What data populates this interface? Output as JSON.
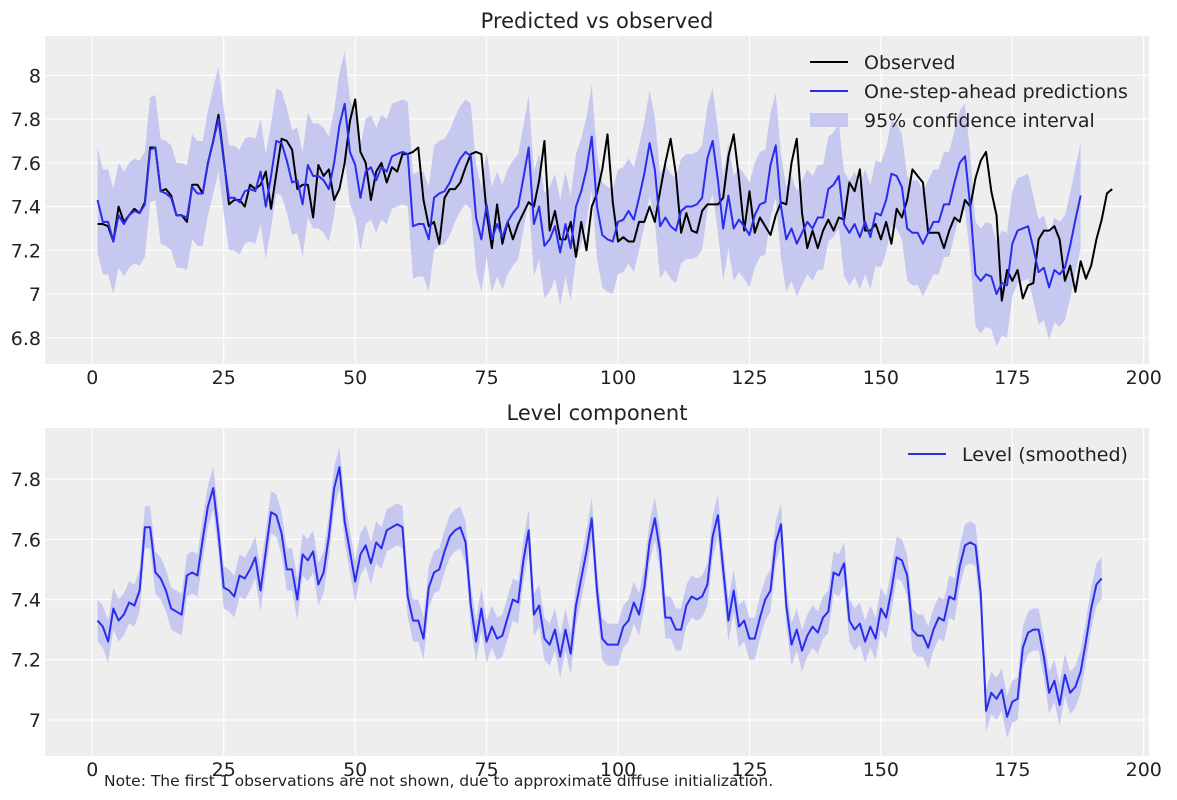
{
  "note": "Note: The first 1 observations are not shown, due to approximate diffuse initialization.",
  "colors": {
    "observed": "#000000",
    "predicted": "#2a2eec",
    "band": "#c7c8f0",
    "panel": "#eeeeee",
    "grid": "#ffffff"
  },
  "chart_data": [
    {
      "type": "line",
      "title": "Predicted vs observed",
      "xlim": [
        -9,
        201
      ],
      "ylim": [
        6.68,
        8.18
      ],
      "xticks": [
        0,
        25,
        50,
        75,
        100,
        125,
        150,
        175,
        200
      ],
      "yticks": [
        6.8,
        7.0,
        7.2,
        7.4,
        7.6,
        7.8,
        8.0
      ],
      "legend_loc": "top-right",
      "legend": [
        "Observed",
        "One-step-ahead predictions",
        "95% confidence interval"
      ],
      "x_start": 1,
      "band_halfwidth": 0.24,
      "series": [
        {
          "name": "Observed",
          "values": [
            7.32,
            7.32,
            7.31,
            7.24,
            7.4,
            7.33,
            7.36,
            7.39,
            7.37,
            7.42,
            7.67,
            7.67,
            7.47,
            7.48,
            7.45,
            7.36,
            7.36,
            7.33,
            7.5,
            7.5,
            7.46,
            7.6,
            7.7,
            7.82,
            7.62,
            7.41,
            7.43,
            7.43,
            7.4,
            7.5,
            7.48,
            7.5,
            7.56,
            7.39,
            7.55,
            7.71,
            7.7,
            7.66,
            7.48,
            7.5,
            7.5,
            7.35,
            7.59,
            7.54,
            7.57,
            7.43,
            7.48,
            7.6,
            7.79,
            7.89,
            7.65,
            7.6,
            7.43,
            7.56,
            7.6,
            7.51,
            7.58,
            7.56,
            7.64,
            7.64,
            7.65,
            7.67,
            7.43,
            7.31,
            7.33,
            7.23,
            7.44,
            7.48,
            7.48,
            7.51,
            7.58,
            7.64,
            7.65,
            7.64,
            7.37,
            7.21,
            7.41,
            7.23,
            7.33,
            7.25,
            7.32,
            7.37,
            7.42,
            7.4,
            7.52,
            7.7,
            7.29,
            7.38,
            7.25,
            7.25,
            7.33,
            7.17,
            7.33,
            7.2,
            7.4,
            7.46,
            7.57,
            7.73,
            7.42,
            7.24,
            7.26,
            7.24,
            7.24,
            7.33,
            7.33,
            7.4,
            7.33,
            7.47,
            7.6,
            7.71,
            7.55,
            7.28,
            7.37,
            7.29,
            7.28,
            7.38,
            7.41,
            7.41,
            7.41,
            7.44,
            7.63,
            7.73,
            7.53,
            7.29,
            7.47,
            7.28,
            7.35,
            7.31,
            7.27,
            7.36,
            7.42,
            7.41,
            7.6,
            7.71,
            7.37,
            7.21,
            7.29,
            7.21,
            7.29,
            7.34,
            7.29,
            7.35,
            7.34,
            7.51,
            7.47,
            7.57,
            7.29,
            7.29,
            7.32,
            7.25,
            7.33,
            7.23,
            7.39,
            7.35,
            7.43,
            7.57,
            7.54,
            7.51,
            7.28,
            7.28,
            7.28,
            7.21,
            7.29,
            7.35,
            7.33,
            7.43,
            7.4,
            7.53,
            7.61,
            7.65,
            7.47,
            7.36,
            6.97,
            7.11,
            7.06,
            7.11,
            6.98,
            7.04,
            7.05,
            7.25,
            7.29,
            7.29,
            7.31,
            7.25,
            7.06,
            7.13,
            7.01,
            7.15,
            7.07,
            7.13,
            7.25,
            7.34,
            7.46,
            7.48
          ]
        },
        {
          "name": "One-step-ahead predictions",
          "values": [
            7.43,
            7.33,
            7.33,
            7.24,
            7.36,
            7.32,
            7.36,
            7.38,
            7.37,
            7.41,
            7.66,
            7.67,
            7.47,
            7.46,
            7.44,
            7.36,
            7.36,
            7.35,
            7.49,
            7.46,
            7.46,
            7.6,
            7.7,
            7.8,
            7.61,
            7.44,
            7.44,
            7.42,
            7.47,
            7.48,
            7.47,
            7.56,
            7.4,
            7.54,
            7.7,
            7.69,
            7.61,
            7.51,
            7.52,
            7.41,
            7.59,
            7.54,
            7.54,
            7.52,
            7.48,
            7.6,
            7.77,
            7.87,
            7.65,
            7.59,
            7.44,
            7.56,
            7.58,
            7.52,
            7.58,
            7.56,
            7.63,
            7.64,
            7.65,
            7.64,
            7.31,
            7.32,
            7.32,
            7.25,
            7.44,
            7.46,
            7.47,
            7.51,
            7.57,
            7.62,
            7.65,
            7.63,
            7.35,
            7.25,
            7.41,
            7.25,
            7.32,
            7.26,
            7.33,
            7.37,
            7.4,
            7.53,
            7.67,
            7.32,
            7.4,
            7.22,
            7.25,
            7.31,
            7.19,
            7.32,
            7.21,
            7.4,
            7.47,
            7.57,
            7.72,
            7.4,
            7.27,
            7.25,
            7.24,
            7.33,
            7.34,
            7.38,
            7.34,
            7.44,
            7.55,
            7.69,
            7.57,
            7.31,
            7.35,
            7.31,
            7.29,
            7.38,
            7.4,
            7.4,
            7.41,
            7.44,
            7.62,
            7.7,
            7.52,
            7.3,
            7.45,
            7.3,
            7.34,
            7.31,
            7.27,
            7.36,
            7.41,
            7.42,
            7.59,
            7.68,
            7.4,
            7.25,
            7.3,
            7.23,
            7.28,
            7.33,
            7.3,
            7.35,
            7.35,
            7.48,
            7.5,
            7.54,
            7.32,
            7.28,
            7.32,
            7.26,
            7.33,
            7.26,
            7.37,
            7.36,
            7.43,
            7.55,
            7.54,
            7.49,
            7.3,
            7.28,
            7.28,
            7.23,
            7.28,
            7.33,
            7.33,
            7.41,
            7.41,
            7.51,
            7.6,
            7.63,
            7.4,
            7.09,
            7.06,
            7.09,
            7.08,
            7.0,
            7.05,
            7.04,
            7.23,
            7.29,
            7.3,
            7.31,
            7.21,
            7.1,
            7.12,
            7.03,
            7.11,
            7.09,
            7.12,
            7.22,
            7.34,
            7.45
          ]
        }
      ]
    },
    {
      "type": "line",
      "title": "Level component",
      "xlim": [
        -9,
        201
      ],
      "ylim": [
        6.88,
        7.97
      ],
      "xticks": [
        0,
        25,
        50,
        75,
        100,
        125,
        150,
        175,
        200
      ],
      "yticks": [
        7.0,
        7.2,
        7.4,
        7.6,
        7.8
      ],
      "legend_loc": "top-right",
      "legend": [
        "Level (smoothed)"
      ],
      "x_start": 1,
      "band_halfwidth": 0.07,
      "series": [
        {
          "name": "Level (smoothed)",
          "values": [
            7.33,
            7.31,
            7.26,
            7.37,
            7.33,
            7.35,
            7.39,
            7.38,
            7.43,
            7.64,
            7.64,
            7.49,
            7.47,
            7.43,
            7.37,
            7.36,
            7.35,
            7.48,
            7.49,
            7.48,
            7.6,
            7.71,
            7.77,
            7.62,
            7.44,
            7.43,
            7.41,
            7.48,
            7.47,
            7.5,
            7.54,
            7.43,
            7.56,
            7.69,
            7.68,
            7.62,
            7.5,
            7.5,
            7.4,
            7.55,
            7.53,
            7.56,
            7.45,
            7.49,
            7.61,
            7.77,
            7.84,
            7.66,
            7.56,
            7.46,
            7.55,
            7.58,
            7.52,
            7.59,
            7.57,
            7.63,
            7.64,
            7.65,
            7.64,
            7.41,
            7.33,
            7.33,
            7.27,
            7.44,
            7.49,
            7.5,
            7.56,
            7.61,
            7.63,
            7.64,
            7.59,
            7.38,
            7.26,
            7.37,
            7.26,
            7.31,
            7.27,
            7.28,
            7.34,
            7.4,
            7.39,
            7.53,
            7.63,
            7.35,
            7.38,
            7.27,
            7.25,
            7.3,
            7.21,
            7.3,
            7.22,
            7.38,
            7.47,
            7.56,
            7.67,
            7.43,
            7.27,
            7.25,
            7.25,
            7.25,
            7.31,
            7.33,
            7.39,
            7.35,
            7.44,
            7.59,
            7.67,
            7.56,
            7.34,
            7.34,
            7.3,
            7.3,
            7.38,
            7.41,
            7.4,
            7.41,
            7.45,
            7.61,
            7.68,
            7.5,
            7.33,
            7.43,
            7.31,
            7.33,
            7.27,
            7.27,
            7.34,
            7.4,
            7.43,
            7.59,
            7.65,
            7.38,
            7.25,
            7.3,
            7.23,
            7.28,
            7.31,
            7.29,
            7.34,
            7.36,
            7.49,
            7.48,
            7.52,
            7.33,
            7.3,
            7.32,
            7.26,
            7.31,
            7.27,
            7.37,
            7.34,
            7.43,
            7.54,
            7.53,
            7.48,
            7.3,
            7.28,
            7.28,
            7.24,
            7.3,
            7.34,
            7.33,
            7.41,
            7.4,
            7.51,
            7.58,
            7.59,
            7.58,
            7.42,
            7.03,
            7.09,
            7.07,
            7.1,
            7.01,
            7.06,
            7.07,
            7.24,
            7.29,
            7.3,
            7.3,
            7.21,
            7.09,
            7.13,
            7.05,
            7.15,
            7.09,
            7.11,
            7.16,
            7.26,
            7.37,
            7.45,
            7.47
          ]
        }
      ]
    }
  ]
}
